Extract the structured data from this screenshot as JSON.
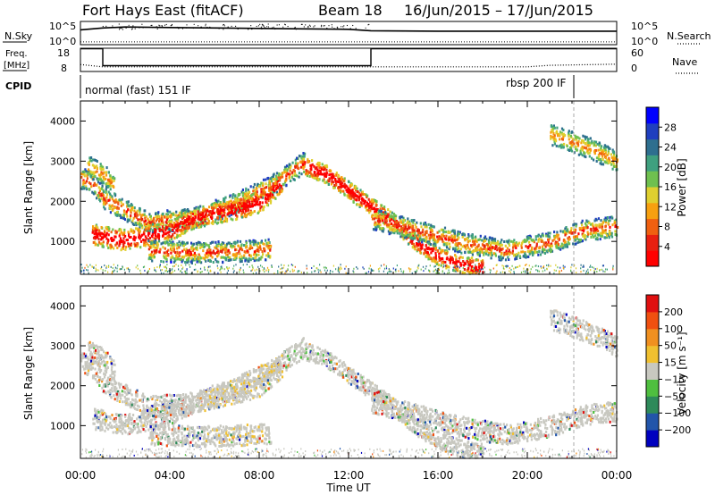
{
  "header": {
    "station": "Fort Hays East (fitACF)",
    "beam": "Beam 18",
    "dates": "16/Jun/2015 – 17/Jun/2015"
  },
  "panels": {
    "nsky": {
      "left_label": "N.Sky",
      "right_label": "N.Search",
      "left_ticks": [
        "10^5",
        "10^0"
      ],
      "right_ticks": [
        "10^5",
        "10^0"
      ]
    },
    "freq": {
      "left_label_1": "Freq.",
      "left_label_2": "[MHz]",
      "right_label": "Nave",
      "left_ticks": [
        "18",
        "8"
      ],
      "right_ticks": [
        "60",
        "0"
      ]
    },
    "cpid": {
      "label": "CPID",
      "mode1": "normal (fast) 151 IF",
      "mode2": "rbsp 200 IF"
    }
  },
  "axes": {
    "ylabel": "Slant Range [km]",
    "xlabel": "Time UT",
    "xticks": [
      "00:00",
      "04:00",
      "08:00",
      "12:00",
      "16:00",
      "20:00",
      "00:00"
    ],
    "yticks": [
      "1000",
      "2000",
      "3000",
      "4000"
    ]
  },
  "colorbars": {
    "power": {
      "label": "Power [dB]",
      "ticks": [
        "4",
        "8",
        "12",
        "16",
        "20",
        "24",
        "28"
      ],
      "colors": [
        "#0000ff",
        "#1f3fbf",
        "#2e6f8f",
        "#3fa07f",
        "#6fc04f",
        "#dfcf2f",
        "#f7a010",
        "#f06010",
        "#e82010",
        "#ff0000"
      ]
    },
    "velocity": {
      "label": "Velocity [m s⁻¹]",
      "ticks": [
        "200",
        "100",
        "50",
        "15",
        "−15",
        "−50",
        "−100",
        "−200"
      ],
      "colors": [
        "#0000bf",
        "#2255aa",
        "#2e8a5a",
        "#4fbf3f",
        "#c8c8c0",
        "#f0c030",
        "#f09020",
        "#f05010",
        "#e01010"
      ]
    }
  },
  "chart_data": [
    {
      "type": "line",
      "panel": "N.Sky / N.Search",
      "x_range_hours": [
        0,
        24
      ],
      "series": [
        {
          "name": "N.Sky",
          "x": [
            0,
            1,
            2,
            4,
            6,
            8,
            10,
            12,
            13,
            16,
            20,
            24
          ],
          "y": [
            3.2,
            3.6,
            3.8,
            3.7,
            3.6,
            3.5,
            3.4,
            3.3,
            3.0,
            2.9,
            2.9,
            2.9
          ]
        },
        {
          "name": "N.Search",
          "x": [
            0,
            1,
            2,
            4,
            8,
            12,
            13,
            16,
            20,
            24
          ],
          "y": [
            0.6,
            0.6,
            0.6,
            0.6,
            0.6,
            0.6,
            0.6,
            0.6,
            0.6,
            0.6
          ]
        }
      ],
      "ylim": [
        0,
        5
      ]
    },
    {
      "type": "line",
      "panel": "Freq / Nave",
      "x_range_hours": [
        0,
        24
      ],
      "series": [
        {
          "name": "Freq.",
          "x": [
            0,
            1,
            1,
            13,
            13,
            24
          ],
          "y": [
            17.8,
            17.8,
            10.5,
            10.5,
            17.8,
            17.8
          ]
        },
        {
          "name": "Nave",
          "x": [
            0,
            1,
            13,
            20,
            21,
            24
          ],
          "y": [
            18,
            12,
            12,
            12,
            16,
            19
          ]
        }
      ],
      "ylim_freq": [
        8,
        18
      ],
      "ylim_nave": [
        0,
        60
      ]
    },
    {
      "type": "heatmap",
      "panel": "Power",
      "xlabel": "Time UT",
      "ylabel": "Slant Range [km]",
      "x_range_hours": [
        0,
        24
      ],
      "ylim": [
        180,
        4500
      ],
      "colorbar_range_db": [
        0,
        30
      ]
    },
    {
      "type": "heatmap",
      "panel": "Velocity",
      "xlabel": "Time UT",
      "ylabel": "Slant Range [km]",
      "x_range_hours": [
        0,
        24
      ],
      "ylim": [
        180,
        4500
      ],
      "colorbar_range": [
        -250,
        250
      ]
    }
  ]
}
